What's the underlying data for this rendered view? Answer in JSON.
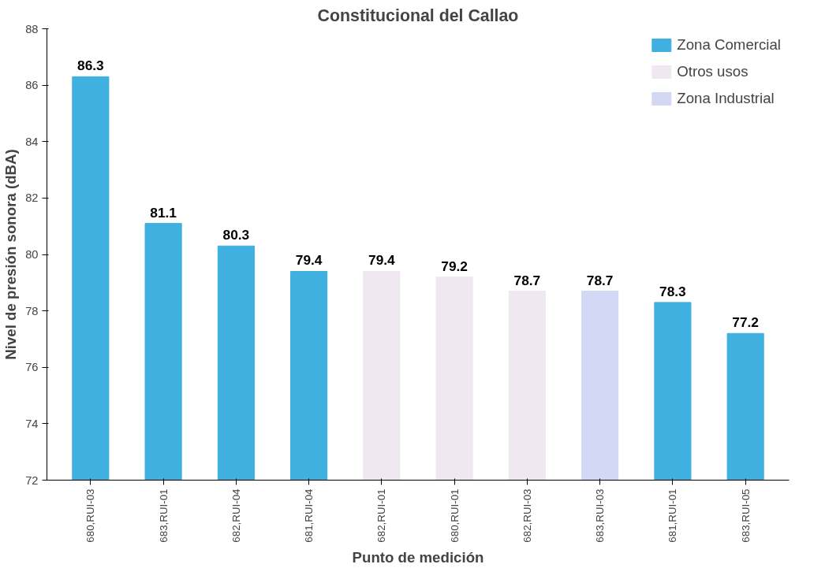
{
  "chart_data": {
    "type": "bar",
    "title": "Constitucional del Callao",
    "xlabel": "Punto de medición",
    "ylabel": "Nivel de presión sonora (dBA)",
    "categories": [
      "680,RUI-03",
      "683,RUI-01",
      "682,RUI-04",
      "681,RUI-04",
      "682,RUI-01",
      "680,RUI-01",
      "682,RUI-03",
      "683,RUI-03",
      "681,RUI-01",
      "683,RUI-05"
    ],
    "series": [
      {
        "name": "Zona Comercial",
        "color": "#3fb0e0",
        "values": [
          86.3,
          81.1,
          80.3,
          79.4,
          null,
          null,
          null,
          null,
          78.3,
          77.2
        ]
      },
      {
        "name": "Otros usos",
        "color": "#efe8f0",
        "values": [
          null,
          null,
          null,
          null,
          79.4,
          79.2,
          78.7,
          null,
          null,
          null
        ]
      },
      {
        "name": "Zona Industrial",
        "color": "#d3d8f5",
        "values": [
          null,
          null,
          null,
          null,
          null,
          null,
          null,
          78.7,
          null,
          null
        ]
      }
    ],
    "ylim": [
      72,
      88
    ],
    "yticks": [
      72,
      74,
      76,
      78,
      80,
      82,
      84,
      86,
      88
    ],
    "data_labels": true,
    "legend": "top right",
    "grid": false
  }
}
